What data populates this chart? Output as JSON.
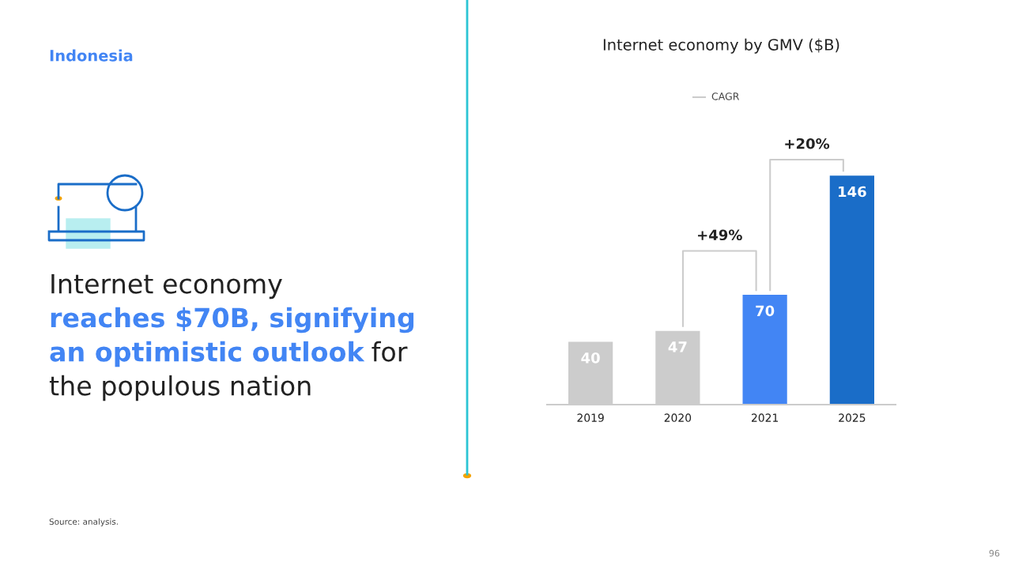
{
  "chart_data": {
    "type": "bar",
    "title": "Internet economy by GMV ($B)",
    "categories": [
      "2019",
      "2020",
      "2021",
      "2025"
    ],
    "values": [
      40,
      47,
      70,
      146
    ],
    "colors": [
      "#cccccc",
      "#cccccc",
      "#4285f4",
      "#1a6dc8"
    ],
    "data_labels": true,
    "annotations": [
      "+49%",
      "+20%",
      "Indonesia",
      "Internet economy",
      "reaches $70B, signifying",
      "an optimistic outlook",
      "for",
      "the populous nation",
      "Source: analysis.",
      "96",
      "CAGR"
    ]
  }
}
